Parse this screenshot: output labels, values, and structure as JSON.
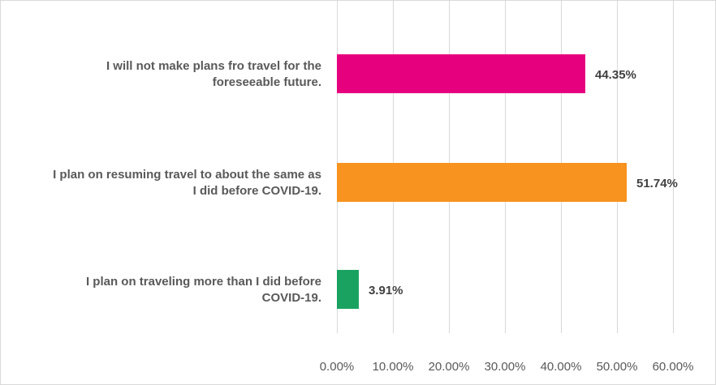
{
  "chart_data": {
    "type": "bar",
    "orientation": "horizontal",
    "title": "",
    "xlabel": "",
    "ylabel": "",
    "categories": [
      [
        "I will not make plans fro travel for the",
        "foreseeable future."
      ],
      [
        "I plan on resuming travel to about the same as",
        "I did before COVID-19."
      ],
      [
        "I plan on traveling more than I did before",
        "COVID-19."
      ]
    ],
    "values": [
      44.35,
      51.74,
      3.91
    ],
    "value_labels": [
      "44.35%",
      "51.74%",
      "3.91%"
    ],
    "colors": [
      "#e6007e",
      "#f7931e",
      "#1aa260"
    ],
    "xlim": [
      0,
      60
    ],
    "ticks": [
      0,
      10,
      20,
      30,
      40,
      50,
      60
    ],
    "tick_labels": [
      "0.00%",
      "10.00%",
      "20.00%",
      "30.00%",
      "40.00%",
      "50.00%",
      "60.00%"
    ],
    "grid": true,
    "legend": "none"
  }
}
